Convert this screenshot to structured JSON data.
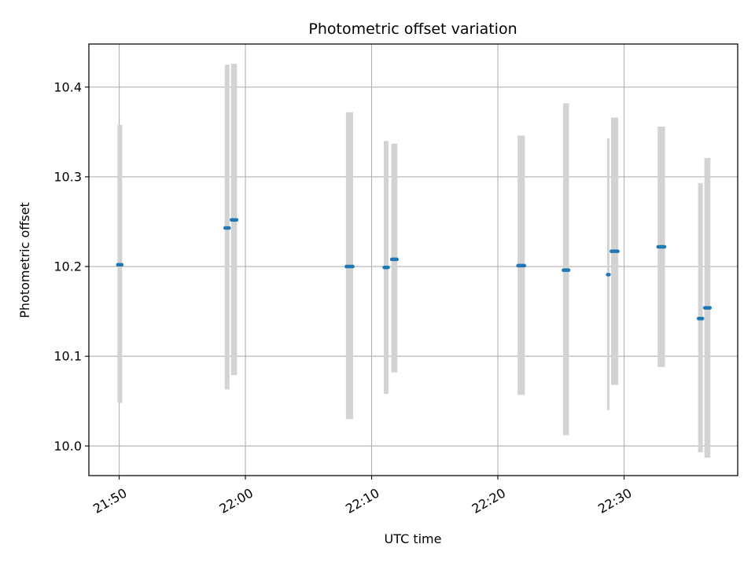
{
  "chart_data": {
    "type": "scatter",
    "title": "Photometric offset variation",
    "xlabel": "UTC time",
    "ylabel": "Photometric offset",
    "x_ticks": [
      "21:50",
      "22:00",
      "22:10",
      "22:20",
      "22:30"
    ],
    "y_ticks": [
      "10.0",
      "10.1",
      "10.2",
      "10.3",
      "10.4"
    ],
    "xlim": [
      "21:47.6",
      "22:39.0"
    ],
    "ylim": [
      9.967,
      10.448
    ],
    "grid": true,
    "errorbar_color": "#d3d3d3",
    "point_color": "#1f77b4",
    "series": [
      {
        "points": [
          {
            "start": "21:49.8",
            "end": "21:50.3",
            "y": 10.202,
            "low": 10.048,
            "high": 10.358
          },
          {
            "start": "21:58.3",
            "end": "21:58.8",
            "y": 10.243,
            "low": 10.063,
            "high": 10.425
          },
          {
            "start": "21:58.8",
            "end": "21:59.4",
            "y": 10.252,
            "low": 10.079,
            "high": 10.426
          },
          {
            "start": "22:07.9",
            "end": "22:08.6",
            "y": 10.2,
            "low": 10.03,
            "high": 10.372
          },
          {
            "start": "22:10.9",
            "end": "22:11.4",
            "y": 10.199,
            "low": 10.058,
            "high": 10.34
          },
          {
            "start": "22:11.5",
            "end": "22:12.1",
            "y": 10.208,
            "low": 10.082,
            "high": 10.337
          },
          {
            "start": "22:21.5",
            "end": "22:22.2",
            "y": 10.201,
            "low": 10.057,
            "high": 10.346
          },
          {
            "start": "22:25.1",
            "end": "22:25.7",
            "y": 10.196,
            "low": 10.012,
            "high": 10.382
          },
          {
            "start": "22:28.6",
            "end": "22:28.9",
            "y": 10.191,
            "low": 10.04,
            "high": 10.343
          },
          {
            "start": "22:28.9",
            "end": "22:29.6",
            "y": 10.217,
            "low": 10.068,
            "high": 10.366
          },
          {
            "start": "22:32.6",
            "end": "22:33.3",
            "y": 10.222,
            "low": 10.088,
            "high": 10.356
          },
          {
            "start": "22:35.8",
            "end": "22:36.3",
            "y": 10.142,
            "low": 9.993,
            "high": 10.293
          },
          {
            "start": "22:36.3",
            "end": "22:36.9",
            "y": 10.154,
            "low": 9.987,
            "high": 10.321
          }
        ]
      }
    ]
  }
}
